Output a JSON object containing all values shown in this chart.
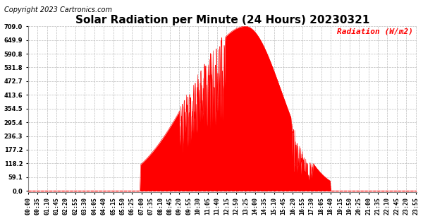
{
  "title": "Solar Radiation per Minute (24 Hours) 20230321",
  "copyright_text": "Copyright 2023 Cartronics.com",
  "ylabel": "Radiation (W/m2)",
  "ylabel_color": "#ff0000",
  "fill_color": "#ff0000",
  "line_color": "#ff0000",
  "background_color": "#ffffff",
  "grid_color": "#bbbbbb",
  "ytick_values": [
    0.0,
    59.1,
    118.2,
    177.2,
    236.3,
    295.4,
    354.5,
    413.6,
    472.7,
    531.8,
    590.8,
    649.9,
    709.0
  ],
  "ylim_max": 709.0,
  "total_minutes": 1440,
  "sunrise_minute": 415,
  "sunset_minute": 1120,
  "peak_minute": 805,
  "peak_value": 709.0,
  "xtick_interval": 35,
  "title_fontsize": 11,
  "tick_fontsize": 6,
  "ylabel_fontsize": 8,
  "copyright_fontsize": 7
}
